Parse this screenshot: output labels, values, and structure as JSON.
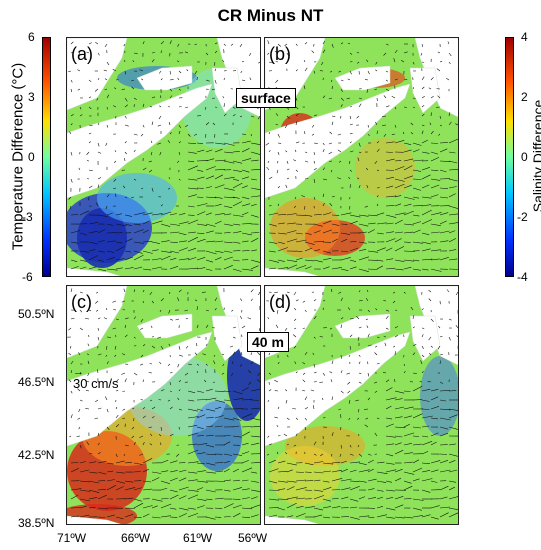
{
  "title": "CR Minus NT",
  "panels": {
    "a": {
      "label": "(a)"
    },
    "b": {
      "label": "(b)"
    },
    "c": {
      "label": "(c)"
    },
    "d": {
      "label": "(d)"
    }
  },
  "depth_labels": {
    "top": "surface",
    "bottom": "40 m"
  },
  "colorbar_left": {
    "label": "Temperature Difference (°C)",
    "ticks": [
      "6",
      "3",
      "0",
      "-3",
      "-6"
    ],
    "range": [
      -6,
      6
    ]
  },
  "colorbar_right": {
    "label": "Salinity Difference",
    "ticks": [
      "4",
      "2",
      "0",
      "-2",
      "-4"
    ],
    "range": [
      -4,
      4
    ]
  },
  "lat_ticks": [
    "50.5ºN",
    "46.5ºN",
    "42.5ºN",
    "38.5ºN"
  ],
  "lon_ticks": [
    "71ºW",
    "66ºW",
    "61ºW",
    "56ºW"
  ],
  "scale_label": "30 cm/s",
  "colors": {
    "land": "#ffffff",
    "ocean_base": "#8fe35a",
    "warm": "#d8231a",
    "cold": "#1a2fb0"
  }
}
